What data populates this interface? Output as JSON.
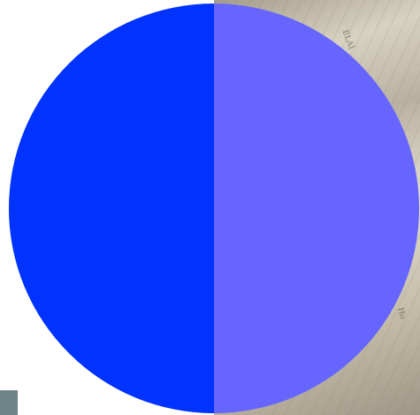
{
  "chart_data": {
    "type": "pie",
    "slices": [
      {
        "value": 50,
        "color": "#6666ff"
      },
      {
        "value": 50,
        "color": "#0033ff"
      }
    ],
    "start_angle_deg": 0,
    "direction": "clockwise"
  },
  "background": {
    "photo": "open-books-photo",
    "page_text": [
      "ELAI",
      "Ho",
      "Ho"
    ]
  },
  "colors": {
    "corner_block": "#6f8486"
  }
}
